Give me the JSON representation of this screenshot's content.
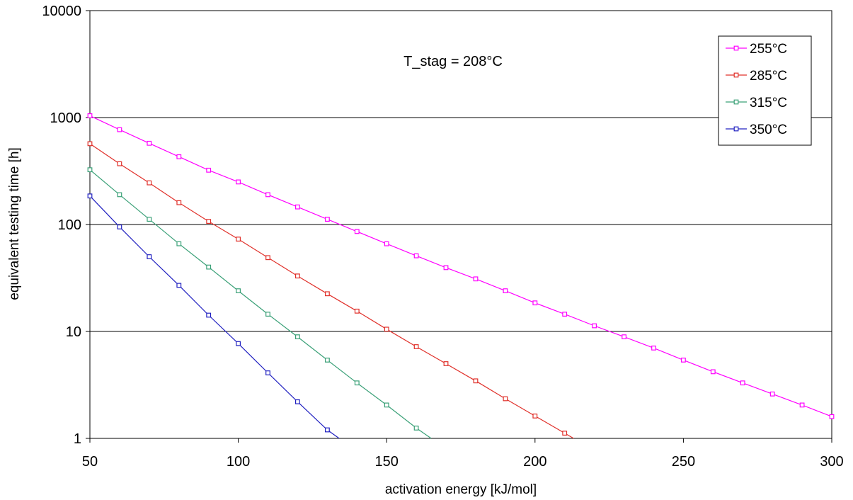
{
  "chart_data": {
    "type": "line",
    "title": "",
    "annotation": "T_stag = 208°C",
    "xlabel": "activation energy [kJ/mol]",
    "ylabel": "equivalent testing time [h]",
    "xlim": [
      50,
      300
    ],
    "ylim": [
      1,
      10000
    ],
    "yscale": "log",
    "xticks": [
      "50",
      "100",
      "150",
      "200",
      "250",
      "300"
    ],
    "yticks": [
      "1",
      "10",
      "100",
      "1000",
      "10000"
    ],
    "grid": "horizontal major gridlines",
    "legend_position": "top-right",
    "x": [
      50,
      60,
      70,
      80,
      90,
      100,
      110,
      120,
      130,
      140,
      150,
      160,
      170,
      180,
      190,
      200,
      210,
      220,
      230,
      240,
      250,
      260,
      270,
      280,
      290,
      300
    ],
    "series": [
      {
        "name": "255°C",
        "color": "#ff00ff",
        "values": [
          1040,
          770,
          575,
          430,
          322,
          250,
          190,
          146,
          112,
          86,
          66,
          51,
          39.5,
          31,
          24,
          18.5,
          14.5,
          11.3,
          8.9,
          7.0,
          5.4,
          4.2,
          3.3,
          2.6,
          2.05,
          1.6
        ]
      },
      {
        "name": "285°C",
        "color": "#e0302a",
        "values": [
          570,
          370,
          245,
          160,
          107,
          73,
          49,
          33,
          22.5,
          15.5,
          10.5,
          7.2,
          5.0,
          3.45,
          2.35,
          1.62,
          1.12,
          null,
          null,
          null,
          null,
          null,
          null,
          null,
          null,
          null
        ],
        "end": [
          213,
          1
        ]
      },
      {
        "name": "315°C",
        "color": "#3aa077",
        "values": [
          325,
          190,
          112,
          66,
          40,
          24,
          14.5,
          8.9,
          5.4,
          3.3,
          2.05,
          1.25,
          null,
          null,
          null,
          null,
          null,
          null,
          null,
          null,
          null,
          null,
          null,
          null,
          null,
          null
        ],
        "end": [
          165,
          1
        ]
      },
      {
        "name": "350°C",
        "color": "#2020c0",
        "values": [
          185,
          95,
          50,
          27,
          14.2,
          7.7,
          4.1,
          2.2,
          1.2,
          null,
          null,
          null,
          null,
          null,
          null,
          null,
          null,
          null,
          null,
          null,
          null,
          null,
          null,
          null,
          null,
          null
        ],
        "end": [
          134,
          1
        ]
      }
    ]
  }
}
